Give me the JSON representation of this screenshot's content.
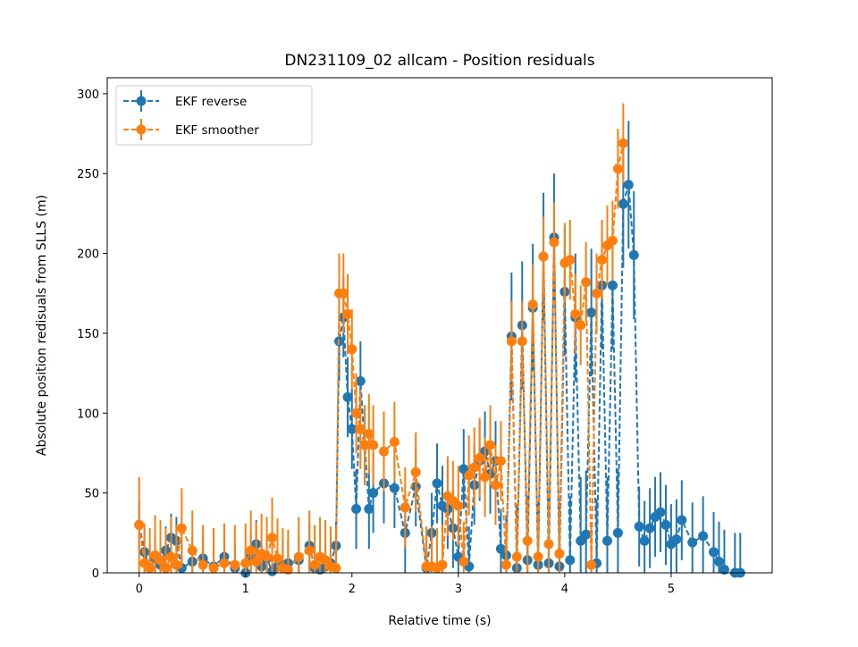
{
  "chart_data": {
    "type": "line",
    "title": "DN231109_02 allcam - Position residuals",
    "xlabel": "Relative time (s)",
    "ylabel": "Absolute position redisuals from SLLS (m)",
    "xlim": [
      -0.3,
      5.95
    ],
    "ylim": [
      0,
      310
    ],
    "xticks": [
      0,
      1,
      2,
      3,
      4,
      5
    ],
    "yticks": [
      0,
      50,
      100,
      150,
      200,
      250,
      300
    ],
    "grid": false,
    "legend_position": "top-left",
    "line_style": "dashed with circle markers and vertical error bars",
    "series": [
      {
        "name": "EKF reverse",
        "color": "#1f77b4",
        "x": [
          0.0,
          0.05,
          0.1,
          0.15,
          0.2,
          0.25,
          0.3,
          0.35,
          0.4,
          0.5,
          0.6,
          0.7,
          0.8,
          0.9,
          1.0,
          1.05,
          1.1,
          1.15,
          1.2,
          1.25,
          1.3,
          1.35,
          1.4,
          1.5,
          1.6,
          1.65,
          1.7,
          1.75,
          1.8,
          1.85,
          1.88,
          1.92,
          1.96,
          2.0,
          2.04,
          2.08,
          2.12,
          2.16,
          2.2,
          2.3,
          2.4,
          2.5,
          2.6,
          2.7,
          2.75,
          2.8,
          2.85,
          2.9,
          2.95,
          3.0,
          3.05,
          3.1,
          3.15,
          3.2,
          3.25,
          3.3,
          3.35,
          3.4,
          3.45,
          3.5,
          3.55,
          3.6,
          3.65,
          3.7,
          3.75,
          3.8,
          3.85,
          3.9,
          3.95,
          4.0,
          4.05,
          4.1,
          4.15,
          4.2,
          4.25,
          4.3,
          4.35,
          4.4,
          4.45,
          4.5,
          4.55,
          4.6,
          4.65,
          4.7,
          4.75,
          4.8,
          4.85,
          4.9,
          4.95,
          5.0,
          5.05,
          5.1,
          5.2,
          5.3,
          5.4,
          5.45,
          5.5,
          5.6,
          5.65
        ],
        "y": [
          30,
          13,
          3,
          9,
          5,
          14,
          22,
          20,
          3,
          7,
          9,
          4,
          10,
          3,
          0,
          10,
          18,
          4,
          9,
          1,
          4,
          5,
          6,
          8,
          17,
          3,
          2,
          4,
          6,
          17,
          145,
          160,
          110,
          90,
          40,
          120,
          80,
          40,
          50,
          56,
          53,
          25,
          54,
          3,
          25,
          56,
          42,
          40,
          28,
          10,
          65,
          4,
          55,
          70,
          76,
          62,
          70,
          15,
          11,
          148,
          3,
          155,
          8,
          166,
          5,
          198,
          6,
          210,
          4,
          176,
          8,
          160,
          20,
          24,
          163,
          6,
          180,
          20,
          180,
          25,
          231,
          243,
          199,
          29,
          20,
          28,
          35,
          38,
          30,
          18,
          21,
          33,
          19,
          23,
          13,
          7,
          2,
          0,
          0
        ],
        "error": [
          15,
          15,
          15,
          15,
          15,
          15,
          15,
          15,
          15,
          15,
          15,
          15,
          15,
          15,
          15,
          15,
          15,
          15,
          15,
          15,
          15,
          15,
          15,
          15,
          15,
          15,
          15,
          15,
          15,
          15,
          25,
          25,
          25,
          25,
          25,
          25,
          25,
          25,
          25,
          25,
          25,
          25,
          25,
          25,
          25,
          25,
          25,
          25,
          25,
          25,
          25,
          25,
          25,
          25,
          25,
          25,
          25,
          25,
          25,
          40,
          40,
          40,
          40,
          40,
          40,
          40,
          40,
          40,
          40,
          40,
          40,
          40,
          40,
          40,
          40,
          40,
          40,
          40,
          40,
          40,
          40,
          40,
          40,
          25,
          25,
          25,
          25,
          25,
          25,
          25,
          25,
          25,
          25,
          25,
          25,
          25,
          25,
          25,
          25
        ]
      },
      {
        "name": "EKF smoother",
        "color": "#ff7f0e",
        "x": [
          0.0,
          0.05,
          0.1,
          0.15,
          0.2,
          0.25,
          0.3,
          0.35,
          0.4,
          0.5,
          0.6,
          0.7,
          0.8,
          0.9,
          1.0,
          1.05,
          1.1,
          1.15,
          1.2,
          1.25,
          1.3,
          1.35,
          1.4,
          1.5,
          1.6,
          1.65,
          1.7,
          1.75,
          1.8,
          1.85,
          1.88,
          1.92,
          1.96,
          2.0,
          2.04,
          2.08,
          2.12,
          2.16,
          2.2,
          2.3,
          2.4,
          2.5,
          2.6,
          2.7,
          2.75,
          2.8,
          2.85,
          2.9,
          2.95,
          3.0,
          3.05,
          3.1,
          3.15,
          3.2,
          3.25,
          3.3,
          3.35,
          3.4,
          3.45,
          3.5,
          3.55,
          3.6,
          3.65,
          3.7,
          3.75,
          3.8,
          3.85,
          3.9,
          3.95,
          4.0,
          4.05,
          4.1,
          4.15,
          4.2,
          4.25,
          4.3,
          4.35,
          4.4,
          4.45,
          4.5,
          4.55
        ],
        "y": [
          30,
          6,
          3,
          11,
          8,
          3,
          10,
          5,
          28,
          14,
          5,
          3,
          6,
          5,
          6,
          14,
          7,
          12,
          10,
          22,
          9,
          3,
          2,
          10,
          14,
          5,
          10,
          8,
          4,
          3,
          175,
          175,
          162,
          140,
          100,
          90,
          80,
          87,
          80,
          76,
          82,
          41,
          63,
          4,
          4,
          3,
          5,
          48,
          45,
          42,
          7,
          61,
          66,
          72,
          60,
          80,
          55,
          70,
          5,
          145,
          10,
          145,
          20,
          168,
          10,
          198,
          18,
          207,
          12,
          194,
          196,
          162,
          155,
          182,
          5,
          175,
          196,
          205,
          208,
          253,
          269
        ],
        "error": [
          30,
          25,
          25,
          25,
          25,
          25,
          25,
          25,
          25,
          25,
          25,
          25,
          25,
          25,
          25,
          25,
          25,
          25,
          25,
          25,
          25,
          25,
          25,
          25,
          25,
          25,
          25,
          25,
          25,
          25,
          25,
          25,
          25,
          25,
          25,
          25,
          25,
          25,
          25,
          25,
          25,
          25,
          25,
          25,
          25,
          25,
          25,
          25,
          25,
          25,
          25,
          25,
          25,
          25,
          25,
          25,
          25,
          25,
          25,
          25,
          25,
          25,
          25,
          25,
          25,
          25,
          25,
          25,
          25,
          25,
          25,
          25,
          25,
          25,
          25,
          25,
          25,
          25,
          25,
          25,
          25
        ]
      }
    ]
  }
}
